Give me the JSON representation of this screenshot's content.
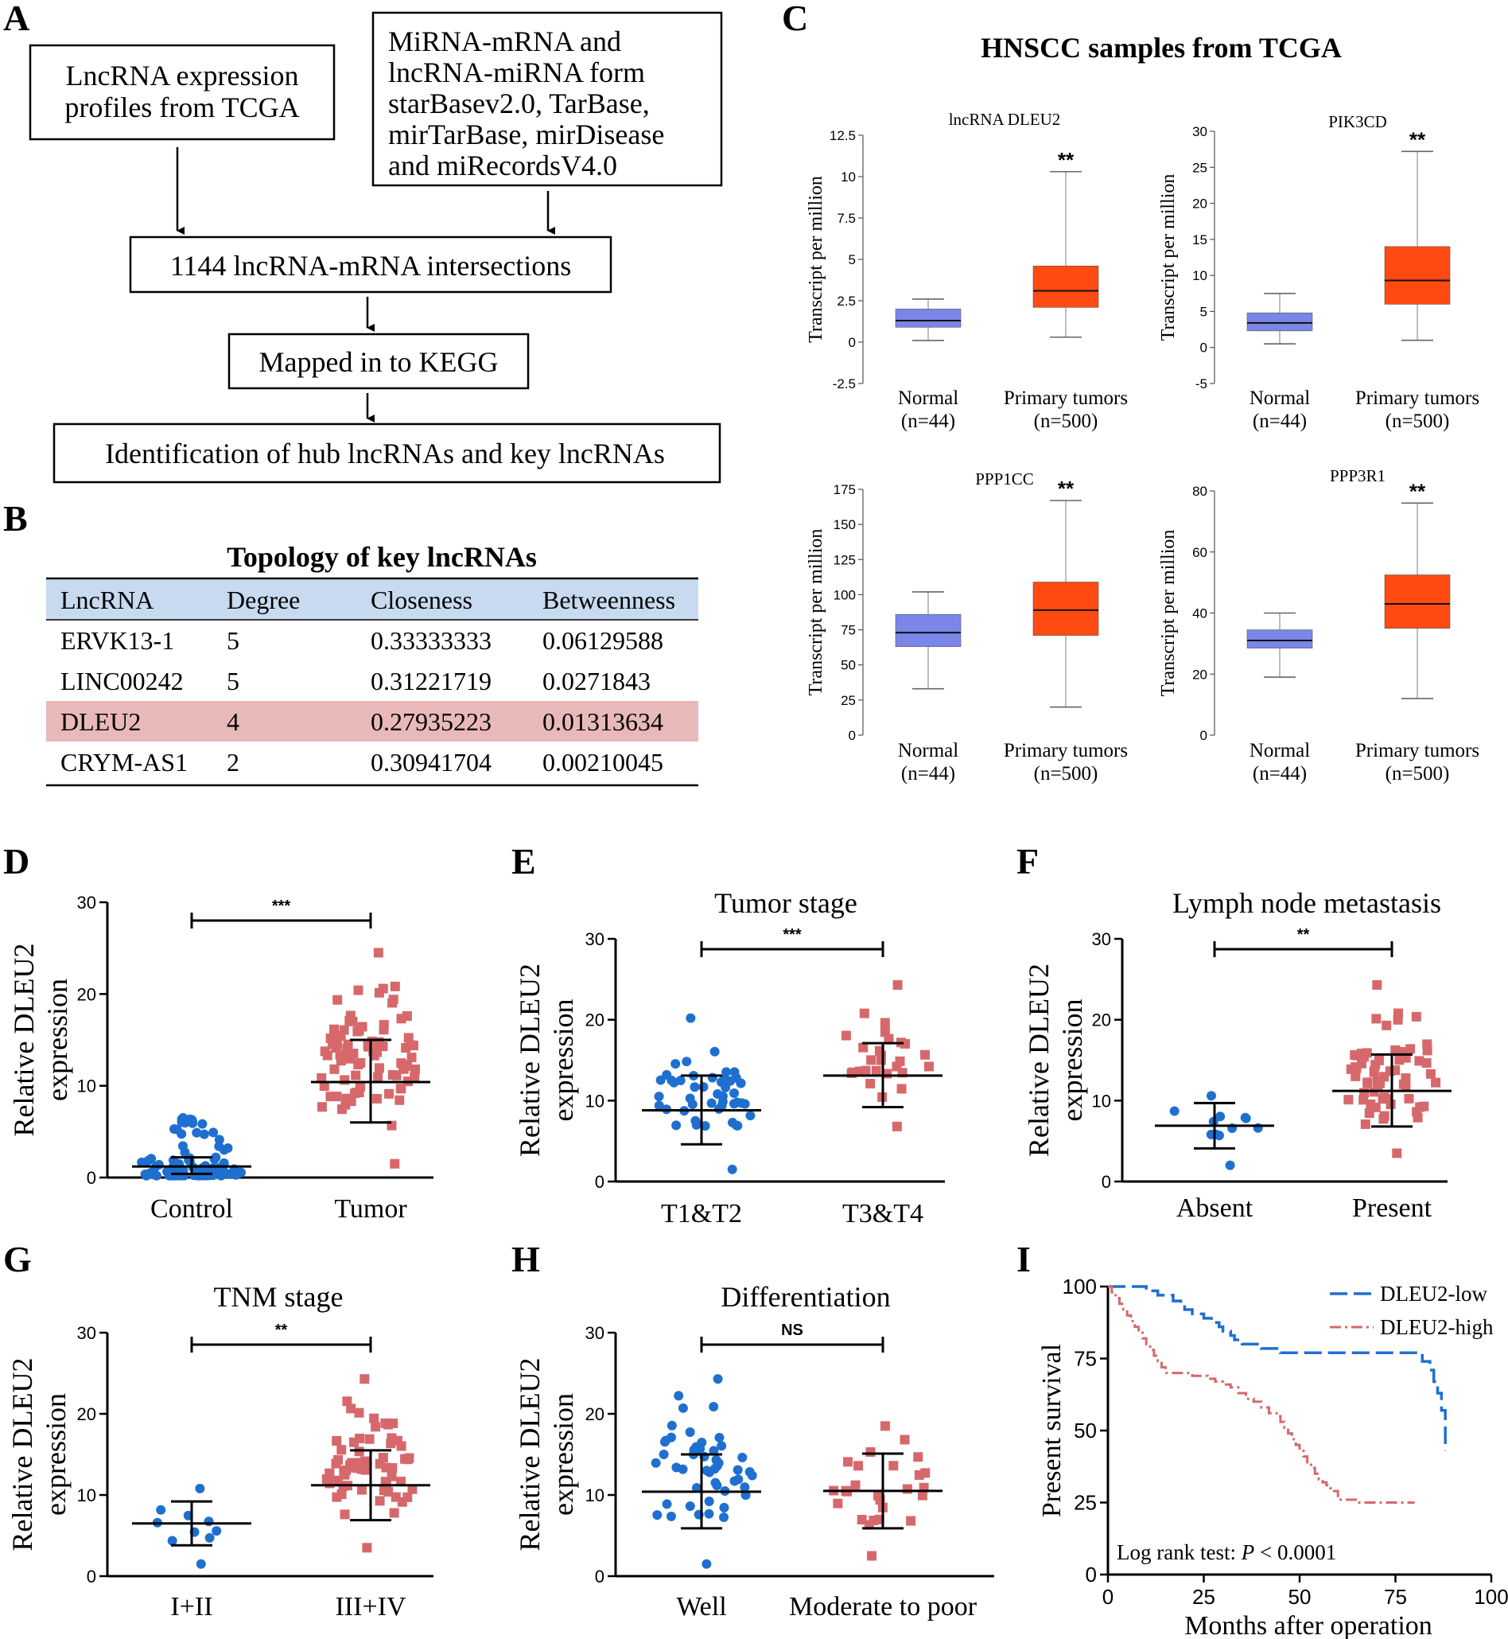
{
  "panel_labels": {
    "a": "A",
    "b": "B",
    "c": "C",
    "d": "D",
    "e": "E",
    "f": "F",
    "g": "G",
    "h": "H",
    "i": "I"
  },
  "flowchart": {
    "box1_line1": "LncRNA expression",
    "box1_line2": "profiles from TCGA",
    "box2_line1": "MiRNA-mRNA and",
    "box2_line2": "lncRNA-miRNA form",
    "box2_line3": "starBasev2.0, TarBase,",
    "box2_line4": "mirTarBase, mirDisease",
    "box2_line5": "and miRecordsV4.0",
    "box3": "1144 lncRNA-mRNA intersections",
    "box4": "Mapped in to KEGG",
    "box5": "Identification of hub lncRNAs and key lncRNAs"
  },
  "table": {
    "title": "Topology of key lncRNAs",
    "headers": [
      "LncRNA",
      "Degree",
      "Closeness",
      "Betweenness"
    ],
    "rows": [
      [
        "ERVK13-1",
        "5",
        "0.33333333",
        "0.06129588"
      ],
      [
        "LINC00242",
        "5",
        "0.31221719",
        "0.0271843"
      ],
      [
        "DLEU2",
        "4",
        "0.27935223",
        "0.01313634"
      ],
      [
        "CRYM-AS1",
        "2",
        "0.30941704",
        "0.00210045"
      ]
    ],
    "highlight_row": 2
  },
  "colors": {
    "normal_box": "#7b86e8",
    "tumor_box": "#ff4a12",
    "header_bg": "#c7daf0",
    "highlight_bg": "#e9b9b9",
    "blue_dot": "#1f6fd0",
    "red_square": "#d6686c",
    "km_low": "#1f6fd0",
    "km_high": "#d6686c"
  },
  "chart_data": [
    {
      "id": "C",
      "type": "box",
      "title": "HNSCC samples from TCGA",
      "ylabel": "Transcript per million",
      "categories": [
        "Normal",
        "Primary tumors"
      ],
      "sample_sizes": [
        "(n=44)",
        "(n=500)"
      ],
      "panels": [
        {
          "name": "lncRNA DLEU2",
          "ylim": [
            -2.5,
            12.5
          ],
          "ticks": [
            "12.5",
            "10",
            "7.5",
            "5",
            "2.5",
            "0",
            "-2.5"
          ],
          "tick_values": [
            12.5,
            10,
            7.5,
            5,
            2.5,
            0,
            -2.5
          ],
          "boxes": [
            {
              "min": 0.1,
              "q1": 0.9,
              "median": 1.3,
              "q3": 2.0,
              "max": 2.6
            },
            {
              "min": 0.3,
              "q1": 2.1,
              "median": 3.1,
              "q3": 4.6,
              "max": 10.3
            }
          ],
          "sig": "**"
        },
        {
          "name": "PIK3CD",
          "ylim": [
            -5,
            30
          ],
          "ticks": [
            "30",
            "25",
            "20",
            "15",
            "10",
            "5",
            "0",
            "-5"
          ],
          "tick_values": [
            30,
            25,
            20,
            15,
            10,
            5,
            0,
            -5
          ],
          "boxes": [
            {
              "min": 0.5,
              "q1": 2.3,
              "median": 3.4,
              "q3": 4.8,
              "max": 7.5
            },
            {
              "min": 1.0,
              "q1": 6.0,
              "median": 9.3,
              "q3": 14.0,
              "max": 27.2
            }
          ],
          "sig": "**"
        },
        {
          "name": "PPP1CC",
          "ylim": [
            0,
            175
          ],
          "ticks": [
            "175",
            "150",
            "125",
            "100",
            "75",
            "50",
            "25",
            "0"
          ],
          "tick_values": [
            175,
            150,
            125,
            100,
            75,
            50,
            25,
            0
          ],
          "boxes": [
            {
              "min": 33,
              "q1": 63,
              "median": 73,
              "q3": 86,
              "max": 102
            },
            {
              "min": 20,
              "q1": 71,
              "median": 89,
              "q3": 109,
              "max": 167
            }
          ],
          "sig": "**"
        },
        {
          "name": "PPP3R1",
          "ylim": [
            0,
            80
          ],
          "ticks": [
            "80",
            "60",
            "40",
            "20",
            "0"
          ],
          "tick_values": [
            80,
            60,
            40,
            20,
            0
          ],
          "boxes": [
            {
              "min": 19,
              "q1": 28.5,
              "median": 31,
              "q3": 34.5,
              "max": 40
            },
            {
              "min": 12,
              "q1": 35,
              "median": 43,
              "q3": 52.5,
              "max": 76
            }
          ],
          "sig": "**"
        }
      ]
    },
    {
      "id": "D",
      "type": "scatter",
      "title": "",
      "ylabel": "Relative DLEU2 expression",
      "ylabel_line1": "Relative DLEU2",
      "ylabel_line2": "expression",
      "categories": [
        "Control",
        "Tumor"
      ],
      "ylim": [
        0,
        30
      ],
      "ticks": [
        "30",
        "20",
        "10",
        "0"
      ],
      "tick_values": [
        30,
        20,
        10,
        0
      ],
      "groups": [
        {
          "mean": 1.2,
          "sd_low": 0.4,
          "sd_high": 2.2,
          "n": 90,
          "min": 0.2,
          "max": 6.5
        },
        {
          "mean": 10.4,
          "sd_low": 6.0,
          "sd_high": 15.0,
          "n": 90,
          "min": 1.5,
          "max": 24.5
        }
      ],
      "sig": "***"
    },
    {
      "id": "E",
      "type": "scatter",
      "title": "Tumor stage",
      "ylabel": "Relative DLEU2 expression",
      "ylabel_line1": "Relative DLEU2",
      "ylabel_line2": "expression",
      "categories": [
        "T1&T2",
        "T3&T4"
      ],
      "ylim": [
        0,
        30
      ],
      "ticks": [
        "30",
        "20",
        "10",
        "0"
      ],
      "tick_values": [
        30,
        20,
        10,
        0
      ],
      "groups": [
        {
          "mean": 8.8,
          "sd_low": 4.6,
          "sd_high": 13.1,
          "n": 48,
          "min": 1.5,
          "max": 20.2
        },
        {
          "mean": 13.1,
          "sd_low": 9.2,
          "sd_high": 17.1,
          "n": 28,
          "min": 6.8,
          "max": 24.3
        }
      ],
      "sig": "***"
    },
    {
      "id": "F",
      "type": "scatter",
      "title": "Lymph node metastasis",
      "ylabel": "Relative DLEU2 expression",
      "ylabel_line1": "Relative DLEU2",
      "ylabel_line2": "expression",
      "categories": [
        "Absent",
        "Present"
      ],
      "ylim": [
        0,
        30
      ],
      "ticks": [
        "30",
        "20",
        "10",
        "0"
      ],
      "tick_values": [
        30,
        20,
        10,
        0
      ],
      "groups": [
        {
          "mean": 6.9,
          "sd_low": 4.1,
          "sd_high": 9.7,
          "n": 12,
          "min": 2.0,
          "max": 10.6
        },
        {
          "mean": 11.2,
          "sd_low": 6.8,
          "sd_high": 15.7,
          "n": 64,
          "min": 3.5,
          "max": 24.3
        }
      ],
      "sig": "**"
    },
    {
      "id": "G",
      "type": "scatter",
      "title": "TNM stage",
      "ylabel": "Relative DLEU2 expression",
      "ylabel_line1": "Relative DLEU2",
      "ylabel_line2": "expression",
      "categories": [
        "I+II",
        "III+IV"
      ],
      "ylim": [
        0,
        30
      ],
      "ticks": [
        "30",
        "20",
        "10",
        "0"
      ],
      "tick_values": [
        30,
        20,
        10,
        0
      ],
      "groups": [
        {
          "mean": 6.5,
          "sd_low": 3.8,
          "sd_high": 9.2,
          "n": 10,
          "min": 1.5,
          "max": 10.8
        },
        {
          "mean": 11.2,
          "sd_low": 6.9,
          "sd_high": 15.5,
          "n": 66,
          "min": 3.5,
          "max": 24.3
        }
      ],
      "sig": "**"
    },
    {
      "id": "H",
      "type": "scatter",
      "title": "Differentiation",
      "ylabel": "Relative DLEU2 expression",
      "ylabel_line1": "Relative DLEU2",
      "ylabel_line2": "expression",
      "categories": [
        "Well",
        "Moderate to poor"
      ],
      "ylim": [
        0,
        30
      ],
      "ticks": [
        "30",
        "20",
        "10",
        "0"
      ],
      "tick_values": [
        30,
        20,
        10,
        0
      ],
      "groups": [
        {
          "mean": 10.4,
          "sd_low": 5.9,
          "sd_high": 15.0,
          "n": 50,
          "min": 1.5,
          "max": 24.3
        },
        {
          "mean": 10.5,
          "sd_low": 5.9,
          "sd_high": 15.1,
          "n": 26,
          "min": 2.5,
          "max": 18.5
        }
      ],
      "sig": "NS"
    },
    {
      "id": "I",
      "type": "line",
      "title": "",
      "xlabel": "Months after operation",
      "ylabel": "Present survival",
      "xlim": [
        0,
        100
      ],
      "ylim": [
        0,
        100
      ],
      "xticks": [
        "0",
        "25",
        "50",
        "75",
        "100"
      ],
      "xtick_values": [
        0,
        25,
        50,
        75,
        100
      ],
      "yticks": [
        "100",
        "75",
        "50",
        "25",
        "0"
      ],
      "ytick_values": [
        100,
        75,
        50,
        25,
        0
      ],
      "annotation_prefix": "Log rank test: ",
      "annotation_p": "P",
      "annotation_suffix": " < 0.0001",
      "series": [
        {
          "name": "DLEU2-low",
          "x": [
            0,
            8,
            10,
            13,
            17,
            19,
            20,
            22,
            25,
            27,
            29,
            30,
            32,
            33,
            35,
            38,
            40,
            42,
            45,
            47,
            50,
            55,
            60,
            65,
            70,
            75,
            80,
            82,
            84,
            85,
            86,
            87,
            88
          ],
          "y": [
            100,
            100,
            98.5,
            97,
            95,
            93.5,
            92,
            90.5,
            89,
            87.5,
            86,
            84.5,
            83,
            81.5,
            80,
            80,
            78.5,
            78.5,
            77,
            77,
            77,
            77,
            77,
            77,
            77,
            77,
            77,
            74,
            71,
            67,
            63,
            57,
            43
          ]
        },
        {
          "name": "DLEU2-high",
          "x": [
            0,
            1,
            2,
            3,
            4,
            5,
            6,
            7,
            8,
            9,
            10,
            11,
            12,
            13,
            14,
            15,
            17,
            19,
            20,
            22,
            24,
            26,
            28,
            30,
            32,
            34,
            36,
            38,
            40,
            42,
            44,
            45,
            46,
            47,
            48,
            49,
            50,
            51,
            52,
            53,
            54,
            55,
            56,
            57,
            58,
            59,
            60,
            65,
            70,
            75,
            80
          ],
          "y": [
            100,
            98,
            96,
            94,
            92,
            90,
            88,
            86,
            84,
            82,
            80,
            78,
            76,
            74,
            72,
            70,
            70,
            70,
            70,
            69,
            69,
            68,
            67,
            66,
            65,
            63,
            61,
            60,
            58,
            56,
            55,
            53,
            51,
            49,
            47,
            45,
            43,
            41,
            39,
            37,
            35,
            33,
            32,
            31,
            30,
            29,
            26,
            25,
            25,
            25,
            25
          ]
        }
      ]
    }
  ]
}
